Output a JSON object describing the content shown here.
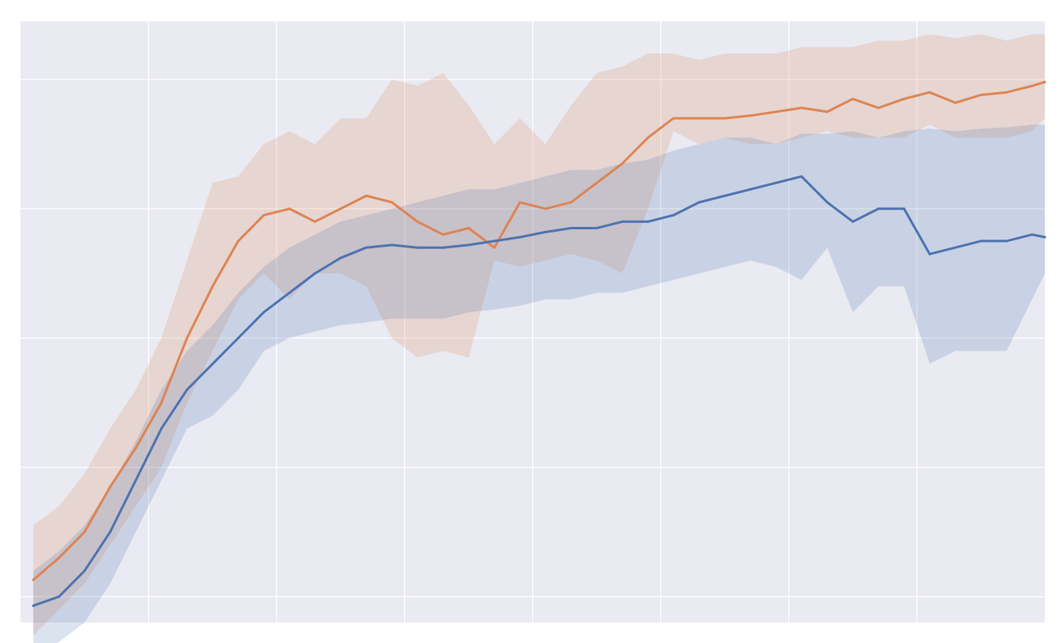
{
  "chart_data": {
    "type": "line",
    "title": "",
    "xlabel": "",
    "ylabel": "",
    "xlim": [
      0,
      8
    ],
    "ylim": [
      -0.2,
      4.45
    ],
    "x_gridlines": [
      1,
      2,
      3,
      4,
      5,
      6,
      7
    ],
    "y_gridlines": [
      0,
      1,
      2,
      3,
      4
    ],
    "grid": true,
    "legend": "none",
    "colors": {
      "background": "#e9eaf2",
      "grid": "#ffffff",
      "orange_line": "#dd8452",
      "orange_band": "#dd8452",
      "blue_line": "#4c72b0",
      "blue_band": "#4c72b0"
    },
    "x": [
      0.1,
      0.3,
      0.5,
      0.7,
      0.9,
      1.1,
      1.3,
      1.5,
      1.7,
      1.9,
      2.1,
      2.3,
      2.5,
      2.7,
      2.9,
      3.1,
      3.3,
      3.5,
      3.7,
      3.9,
      4.1,
      4.3,
      4.5,
      4.7,
      4.9,
      5.1,
      5.3,
      5.5,
      5.7,
      5.9,
      6.1,
      6.3,
      6.5,
      6.7,
      6.9,
      7.1,
      7.3,
      7.5,
      7.7,
      7.9,
      8.0
    ],
    "series": [
      {
        "color": "orange",
        "values": [
          0.13,
          0.3,
          0.5,
          0.85,
          1.15,
          1.5,
          2.0,
          2.4,
          2.75,
          2.95,
          3.0,
          2.9,
          3.0,
          3.1,
          3.05,
          2.9,
          2.8,
          2.85,
          2.7,
          3.05,
          3.0,
          3.05,
          3.2,
          3.35,
          3.55,
          3.7,
          3.7,
          3.7,
          3.72,
          3.75,
          3.78,
          3.75,
          3.85,
          3.78,
          3.85,
          3.9,
          3.82,
          3.88,
          3.9,
          3.95,
          3.98
        ],
        "lower": [
          -0.3,
          -0.1,
          0.1,
          0.4,
          0.7,
          1.0,
          1.5,
          1.9,
          2.3,
          2.5,
          2.3,
          2.5,
          2.5,
          2.4,
          2.0,
          1.85,
          1.9,
          1.85,
          2.6,
          2.55,
          2.6,
          2.65,
          2.6,
          2.5,
          3.0,
          3.6,
          3.5,
          3.55,
          3.5,
          3.5,
          3.55,
          3.6,
          3.55,
          3.55,
          3.55,
          3.65,
          3.55,
          3.55,
          3.55,
          3.6,
          3.7
        ],
        "upper": [
          0.55,
          0.7,
          0.95,
          1.3,
          1.6,
          2.0,
          2.6,
          3.2,
          3.25,
          3.5,
          3.6,
          3.5,
          3.7,
          3.7,
          4.0,
          3.95,
          4.05,
          3.8,
          3.5,
          3.7,
          3.5,
          3.8,
          4.05,
          4.1,
          4.2,
          4.2,
          4.15,
          4.2,
          4.2,
          4.2,
          4.25,
          4.25,
          4.25,
          4.3,
          4.3,
          4.35,
          4.32,
          4.35,
          4.3,
          4.35,
          4.35
        ]
      },
      {
        "color": "blue",
        "values": [
          -0.07,
          0.0,
          0.2,
          0.5,
          0.9,
          1.3,
          1.6,
          1.8,
          2.0,
          2.2,
          2.35,
          2.5,
          2.62,
          2.7,
          2.72,
          2.7,
          2.7,
          2.72,
          2.75,
          2.78,
          2.82,
          2.85,
          2.85,
          2.9,
          2.9,
          2.95,
          3.05,
          3.1,
          3.15,
          3.2,
          3.25,
          3.05,
          2.9,
          3.0,
          3.0,
          2.65,
          2.7,
          2.75,
          2.75,
          2.8,
          2.78
        ],
        "lower": [
          -0.45,
          -0.35,
          -0.2,
          0.1,
          0.5,
          0.9,
          1.3,
          1.4,
          1.6,
          1.9,
          2.0,
          2.05,
          2.1,
          2.12,
          2.15,
          2.15,
          2.15,
          2.2,
          2.22,
          2.25,
          2.3,
          2.3,
          2.35,
          2.35,
          2.4,
          2.45,
          2.5,
          2.55,
          2.6,
          2.55,
          2.45,
          2.7,
          2.2,
          2.4,
          2.4,
          1.8,
          1.9,
          1.9,
          1.9,
          2.3,
          2.5
        ],
        "upper": [
          0.2,
          0.35,
          0.55,
          0.85,
          1.2,
          1.6,
          1.9,
          2.1,
          2.35,
          2.55,
          2.7,
          2.8,
          2.9,
          2.95,
          3.0,
          3.05,
          3.1,
          3.15,
          3.15,
          3.2,
          3.25,
          3.3,
          3.3,
          3.35,
          3.38,
          3.45,
          3.5,
          3.55,
          3.55,
          3.5,
          3.58,
          3.58,
          3.6,
          3.55,
          3.6,
          3.62,
          3.6,
          3.62,
          3.63,
          3.65,
          3.65
        ]
      }
    ]
  }
}
